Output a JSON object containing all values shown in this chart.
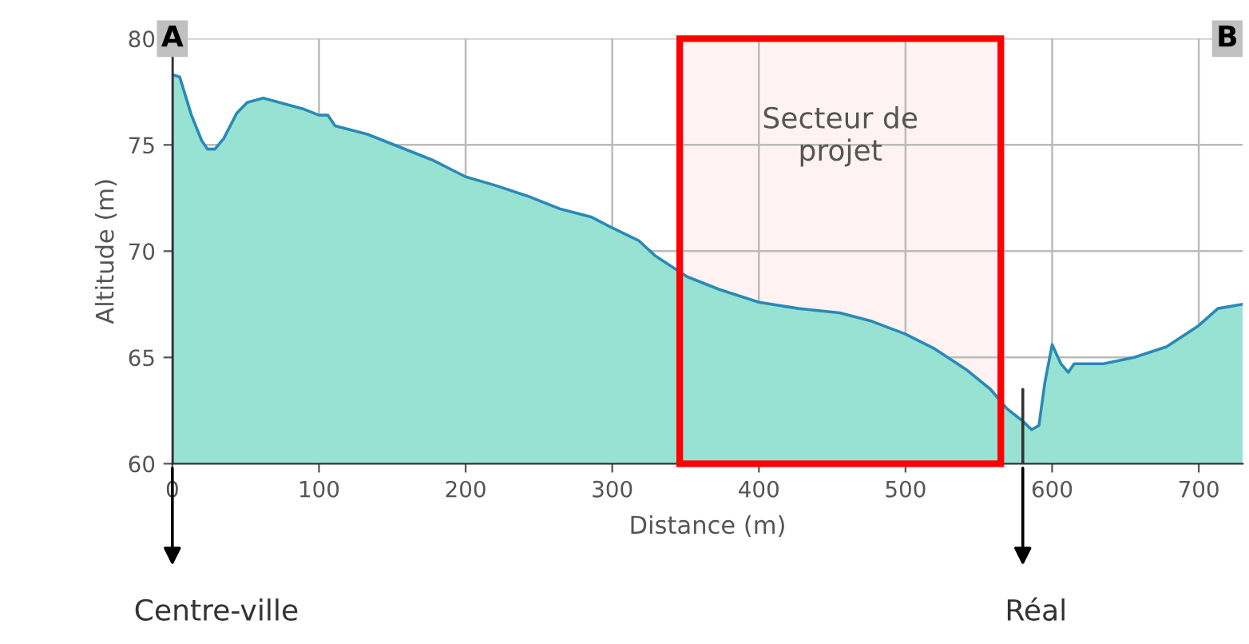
{
  "chart_data": {
    "type": "area",
    "xlabel": "Distance (m)",
    "ylabel": "Altitude (m)",
    "xlim": [
      0,
      730
    ],
    "ylim": [
      60,
      80
    ],
    "xticks": [
      0,
      100,
      200,
      300,
      400,
      500,
      600,
      700
    ],
    "yticks": [
      60,
      65,
      70,
      75,
      80
    ],
    "grid": true,
    "series": [
      {
        "color": "#98e2d4",
        "x": [
          0,
          5,
          13,
          20,
          24,
          29,
          35,
          44,
          51,
          62,
          73,
          89,
          100,
          106,
          111,
          133,
          155,
          177,
          200,
          220,
          242,
          264,
          286,
          300,
          318,
          329,
          340,
          351,
          373,
          400,
          427,
          455,
          477,
          500,
          520,
          542,
          558,
          569,
          580,
          586,
          591,
          595,
          600,
          606,
          611,
          615,
          635,
          656,
          678,
          700,
          713,
          730
        ],
        "values": [
          78.3,
          78.2,
          76.4,
          75.2,
          74.8,
          74.8,
          75.3,
          76.5,
          77.0,
          77.2,
          77.0,
          76.7,
          76.4,
          76.4,
          75.9,
          75.5,
          74.9,
          74.3,
          73.5,
          73.1,
          72.6,
          72.0,
          71.6,
          71.1,
          70.5,
          69.8,
          69.3,
          68.8,
          68.2,
          67.6,
          67.3,
          67.1,
          66.7,
          66.1,
          65.4,
          64.4,
          63.5,
          62.6,
          62.0,
          61.6,
          61.8,
          63.8,
          65.6,
          64.7,
          64.3,
          64.7,
          64.7,
          65.0,
          65.5,
          66.5,
          67.3,
          67.5
        ]
      }
    ],
    "bands": [
      {
        "axis": "x",
        "from": 346,
        "to": 565,
        "label": "Secteur de\nprojet",
        "color": "#ff0000"
      }
    ],
    "ref_lines": [
      {
        "axis": "x",
        "value": 0,
        "label": "Centre-ville"
      },
      {
        "axis": "x",
        "value": 580,
        "label": "Réal"
      }
    ],
    "annotations": [
      "A",
      "B"
    ]
  }
}
